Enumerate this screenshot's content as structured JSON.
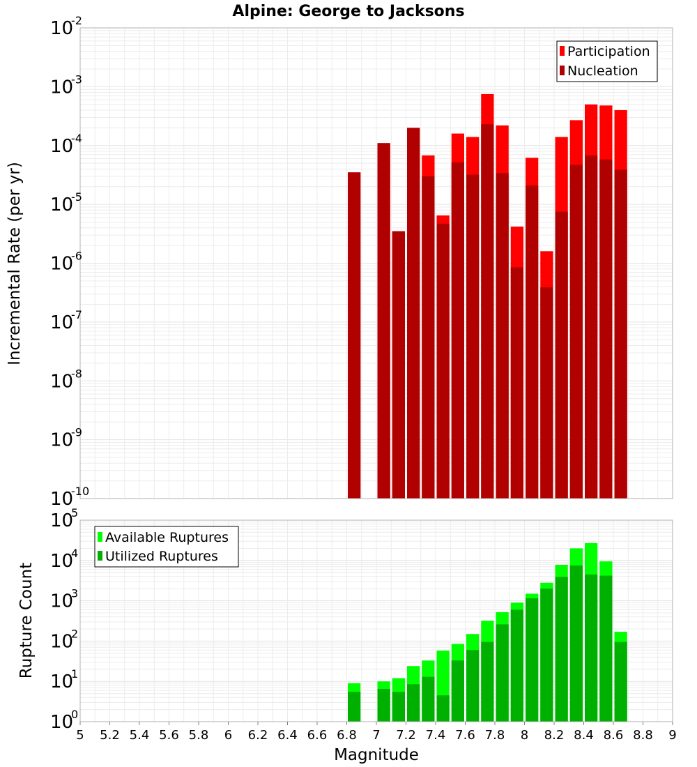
{
  "chart_data": [
    {
      "type": "bar",
      "title": "Alpine: George to Jacksons",
      "ylabel": "Incremental Rate (per yr)",
      "xlabel": "",
      "yscale": "log",
      "ylim": [
        1e-10,
        0.01
      ],
      "xlim": [
        5,
        9
      ],
      "grid": true,
      "legend_position": "top-right",
      "bar_width": 0.1,
      "x": [
        6.85,
        7.05,
        7.15,
        7.25,
        7.35,
        7.45,
        7.55,
        7.65,
        7.75,
        7.85,
        7.95,
        8.05,
        8.15,
        8.25,
        8.35,
        8.45,
        8.55,
        8.65
      ],
      "series": [
        {
          "name": "Participation",
          "color": "#ff0000",
          "values": [
            3.5e-05,
            0.00011,
            3.5e-06,
            0.0002,
            6.8e-05,
            6.5e-06,
            0.00016,
            0.00014,
            0.00075,
            0.00022,
            4.2e-06,
            6.2e-05,
            1.6e-06,
            0.00014,
            0.00027,
            0.0005,
            0.00048,
            0.0004
          ]
        },
        {
          "name": "Nucleation",
          "color": "#b00000",
          "values": [
            3.5e-05,
            0.00011,
            3.5e-06,
            0.0002,
            3e-05,
            4.7e-06,
            5.2e-05,
            3.2e-05,
            0.00023,
            3.4e-05,
            8.5e-07,
            2.1e-05,
            3.9e-07,
            7.5e-06,
            4.7e-05,
            6.8e-05,
            5.8e-05,
            3.9e-05
          ]
        }
      ],
      "yticks": [
        {
          "base": "10",
          "exp": "-10"
        },
        {
          "base": "10",
          "exp": "-9"
        },
        {
          "base": "10",
          "exp": "-8"
        },
        {
          "base": "10",
          "exp": "-7"
        },
        {
          "base": "10",
          "exp": "-6"
        },
        {
          "base": "10",
          "exp": "-5"
        },
        {
          "base": "10",
          "exp": "-4"
        },
        {
          "base": "10",
          "exp": "-3"
        },
        {
          "base": "10",
          "exp": "-2"
        }
      ]
    },
    {
      "type": "bar",
      "title": "",
      "ylabel": "Rupture Count",
      "xlabel": "Magnitude",
      "yscale": "log",
      "ylim": [
        1,
        100000.0
      ],
      "xlim": [
        5,
        9
      ],
      "grid": true,
      "legend_position": "top-left",
      "bar_width": 0.1,
      "x": [
        6.85,
        7.05,
        7.15,
        7.25,
        7.35,
        7.45,
        7.55,
        7.65,
        7.75,
        7.85,
        7.95,
        8.05,
        8.15,
        8.25,
        8.35,
        8.45,
        8.55,
        8.65
      ],
      "series": [
        {
          "name": "Available Ruptures",
          "color": "#00ff00",
          "values": [
            9,
            10,
            12,
            24,
            33,
            58,
            85,
            150,
            320,
            520,
            900,
            1500,
            2800,
            7800,
            20000,
            27000,
            9500,
            170
          ]
        },
        {
          "name": "Utilized Ruptures",
          "color": "#00b000",
          "values": [
            5.5,
            6.5,
            5.5,
            8.5,
            13,
            4.5,
            33,
            60,
            95,
            260,
            600,
            1150,
            2000,
            3900,
            7500,
            4500,
            4200,
            95
          ]
        }
      ],
      "yticks": [
        {
          "base": "10",
          "exp": "0"
        },
        {
          "base": "10",
          "exp": "1"
        },
        {
          "base": "10",
          "exp": "2"
        },
        {
          "base": "10",
          "exp": "3"
        },
        {
          "base": "10",
          "exp": "4"
        },
        {
          "base": "10",
          "exp": "5"
        }
      ],
      "xticks": [
        "5",
        "5.2",
        "5.4",
        "5.6",
        "5.8",
        "6",
        "6.2",
        "6.4",
        "6.6",
        "6.8",
        "7",
        "7.2",
        "7.4",
        "7.6",
        "7.8",
        "8",
        "8.2",
        "8.4",
        "8.6",
        "8.8",
        "9"
      ]
    }
  ]
}
